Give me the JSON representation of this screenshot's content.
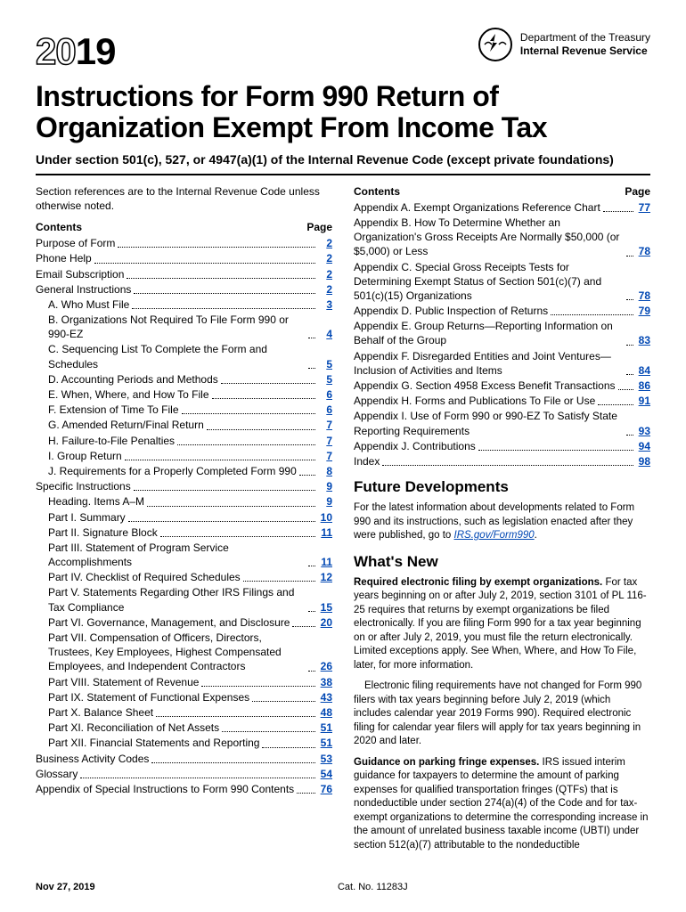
{
  "header": {
    "year_prefix": "20",
    "year_suffix": "19",
    "dept_line1": "Department of the Treasury",
    "dept_line2": "Internal Revenue Service"
  },
  "title": "Instructions for Form 990 Return of Organization Exempt From Income Tax",
  "subtitle": "Under section 501(c), 527, or 4947(a)(1) of the Internal Revenue Code (except private foundations)",
  "intro": "Section references are to the Internal Revenue Code unless otherwise noted.",
  "contents_label": "Contents",
  "page_label": "Page",
  "toc_left": [
    {
      "label": "Purpose of Form",
      "page": "2",
      "indent": 0
    },
    {
      "label": "Phone Help",
      "page": "2",
      "indent": 0
    },
    {
      "label": "Email Subscription",
      "page": "2",
      "indent": 0
    },
    {
      "label": "General Instructions",
      "page": "2",
      "indent": 0
    },
    {
      "label": "A. Who Must File",
      "page": "3",
      "indent": 1
    },
    {
      "label": "B. Organizations Not Required To File Form 990 or 990-EZ",
      "page": "4",
      "indent": 1
    },
    {
      "label": "C. Sequencing List To Complete the Form and Schedules",
      "page": "5",
      "indent": 1
    },
    {
      "label": "D. Accounting Periods and Methods",
      "page": "5",
      "indent": 1
    },
    {
      "label": "E. When, Where, and How To File",
      "page": "6",
      "indent": 1
    },
    {
      "label": "F. Extension of Time To File",
      "page": "6",
      "indent": 1
    },
    {
      "label": "G. Amended Return/Final Return",
      "page": "7",
      "indent": 1
    },
    {
      "label": "H. Failure-to-File Penalties",
      "page": "7",
      "indent": 1
    },
    {
      "label": "I. Group Return",
      "page": "7",
      "indent": 1
    },
    {
      "label": "J. Requirements for a Properly Completed Form 990",
      "page": "8",
      "indent": 1
    },
    {
      "label": "Specific Instructions",
      "page": "9",
      "indent": 0
    },
    {
      "label": "Heading. Items A–M",
      "page": "9",
      "indent": 1
    },
    {
      "label": "Part I. Summary",
      "page": "10",
      "indent": 1
    },
    {
      "label": "Part II. Signature Block",
      "page": "11",
      "indent": 1
    },
    {
      "label": "Part III. Statement of Program Service Accomplishments",
      "page": "11",
      "indent": 1
    },
    {
      "label": "Part IV. Checklist of Required Schedules",
      "page": "12",
      "indent": 1
    },
    {
      "label": "Part V. Statements Regarding Other IRS Filings and Tax Compliance",
      "page": "15",
      "indent": 1
    },
    {
      "label": "Part VI. Governance, Management, and Disclosure",
      "page": "20",
      "indent": 1
    },
    {
      "label": "Part VII. Compensation of Officers, Directors, Trustees, Key Employees, Highest Compensated Employees, and Independent Contractors",
      "page": "26",
      "indent": 1
    },
    {
      "label": "Part VIII. Statement of Revenue",
      "page": "38",
      "indent": 1
    },
    {
      "label": "Part IX. Statement of Functional Expenses",
      "page": "43",
      "indent": 1
    },
    {
      "label": "Part X. Balance Sheet",
      "page": "48",
      "indent": 1
    },
    {
      "label": "Part XI. Reconciliation of Net Assets",
      "page": "51",
      "indent": 1
    },
    {
      "label": "Part XII. Financial Statements and Reporting",
      "page": "51",
      "indent": 1
    },
    {
      "label": "Business Activity Codes",
      "page": "53",
      "indent": 0
    },
    {
      "label": "Glossary",
      "page": "54",
      "indent": 0
    },
    {
      "label": "Appendix of Special Instructions to Form 990 Contents",
      "page": "76",
      "indent": 0
    }
  ],
  "toc_right": [
    {
      "label": "Appendix A. Exempt Organizations Reference Chart",
      "page": "77",
      "indent": 0
    },
    {
      "label": "Appendix B. How To Determine Whether an Organization's Gross Receipts Are Normally $50,000 (or $5,000) or Less",
      "page": "78",
      "indent": 0
    },
    {
      "label": "Appendix C. Special Gross Receipts Tests for Determining Exempt Status of Section 501(c)(7) and 501(c)(15) Organizations",
      "page": "78",
      "indent": 0
    },
    {
      "label": "Appendix D. Public Inspection of Returns",
      "page": "79",
      "indent": 0
    },
    {
      "label": "Appendix E. Group Returns—Reporting Information on Behalf of the Group",
      "page": "83",
      "indent": 0
    },
    {
      "label": "Appendix F. Disregarded Entities and Joint Ventures—Inclusion of Activities and Items",
      "page": "84",
      "indent": 0
    },
    {
      "label": "Appendix G. Section 4958 Excess Benefit Transactions",
      "page": "86",
      "indent": 0
    },
    {
      "label": "Appendix H. Forms and Publications To File or Use",
      "page": "91",
      "indent": 0
    },
    {
      "label": "Appendix I. Use of Form 990 or 990-EZ To Satisfy State Reporting Requirements",
      "page": "93",
      "indent": 0
    },
    {
      "label": "Appendix J. Contributions",
      "page": "94",
      "indent": 0
    },
    {
      "label": "Index",
      "page": "98",
      "indent": 0
    }
  ],
  "future_dev": {
    "heading": "Future Developments",
    "text": "For the latest information about developments related to Form 990 and its instructions, such as legislation enacted after they were published, go to ",
    "link": "IRS.gov/Form990",
    "text_after": "."
  },
  "whats_new": {
    "heading": "What's New",
    "p1_runin": "Required electronic filing by exempt organizations.",
    "p1": "For tax years beginning on or after July 2, 2019, section 3101 of PL 116-25 requires that returns by exempt organizations be filed electronically. If you are filing Form 990 for a tax year beginning on or after July 2, 2019, you must file the return electronically. Limited exceptions apply. See When, Where, and How To File, later, for more information.",
    "p2": "Electronic filing requirements have not changed for Form 990 filers with tax years beginning before July 2, 2019 (which includes calendar year 2019 Forms 990). Required electronic filing for calendar year filers will apply for tax years beginning in 2020 and later.",
    "p3_runin": "Guidance on parking fringe expenses.",
    "p3": "IRS issued interim guidance for taxpayers to determine the amount of parking expenses for qualified transportation fringes (QTFs) that is nondeductible under section 274(a)(4) of the Code and for tax-exempt organizations to determine the corresponding increase in the amount of unrelated business taxable income (UBTI) under section 512(a)(7) attributable to the nondeductible"
  },
  "footer": {
    "date": "Nov 27, 2019",
    "catalog": "Cat. No. 11283J"
  },
  "colors": {
    "link": "#0047b3",
    "text": "#000000",
    "background": "#ffffff"
  }
}
